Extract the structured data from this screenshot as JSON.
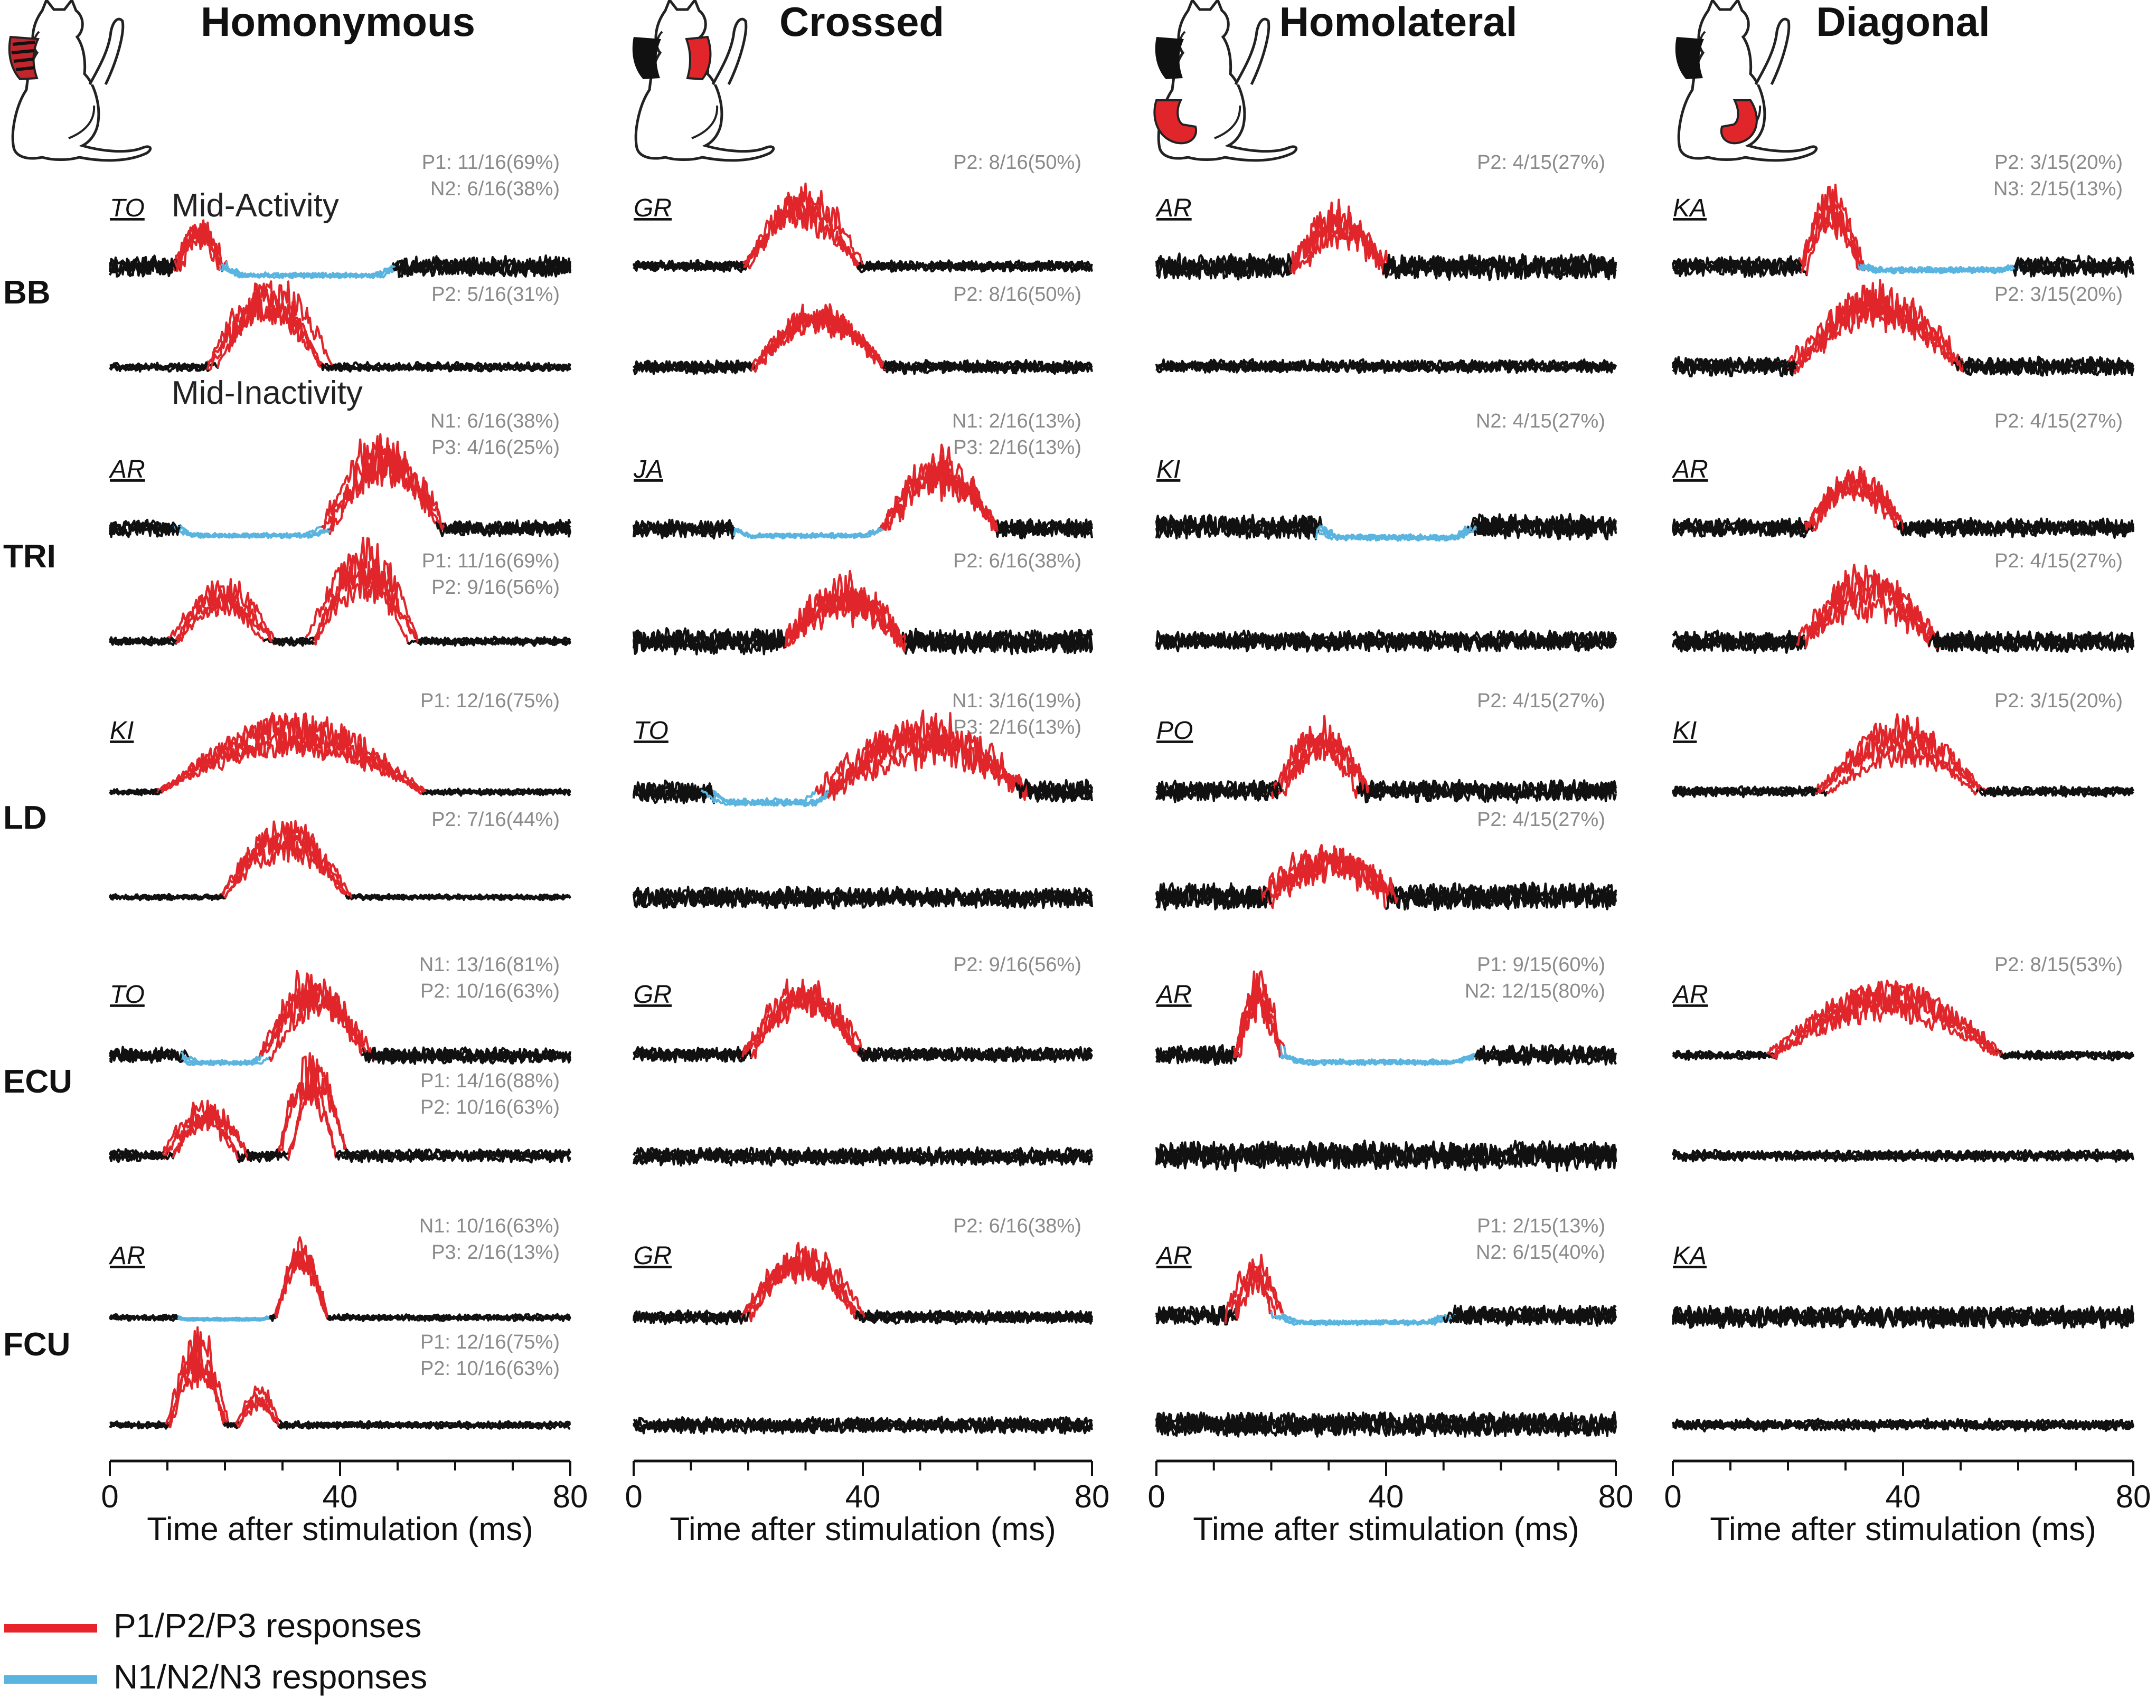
{
  "chart_data": {
    "type": "line",
    "description_note": "Grid of evoked EMG response traces; 4 stimulation conditions x 5 muscles, two phases (Mid-Activity / Mid-Inactivity) per cell.",
    "columns": [
      "Homonymous",
      "Crossed",
      "Homolateral",
      "Diagonal"
    ],
    "rows": [
      "BB",
      "TRI",
      "LD",
      "ECU",
      "FCU"
    ],
    "phase_labels": {
      "activity": "Mid-Activity",
      "inactivity": "Mid-Inactivity"
    },
    "xaxis": {
      "label": "Time after stimulation (ms)",
      "range": [
        0,
        80
      ],
      "ticks": [
        "0",
        "40",
        "80"
      ]
    },
    "legend": [
      {
        "label": "P1/P2/P3 responses",
        "color": "#e8242a"
      },
      {
        "label": "N1/N2/N3 responses",
        "color": "#5ab4e0"
      }
    ],
    "colors": {
      "trace": "#111111",
      "positive": "#e0262b",
      "negative": "#5ab4e0",
      "stat": "#8a8a8a"
    },
    "cells": [
      [
        {
          "cat": "TO",
          "top": {
            "stats": [
              "P1: 11/16(69%)",
              "N2: 6/16(38%)"
            ],
            "resp": [
              {
                "p": "pos",
                "a": 12,
                "b": 20,
                "h": 1.0
              },
              {
                "p": "neg",
                "a": 20,
                "b": 50,
                "h": 0.5
              }
            ],
            "noise": 0.6
          },
          "bot": {
            "stats": [
              "P2: 5/16(31%)"
            ],
            "resp": [
              {
                "p": "pos",
                "a": 18,
                "b": 38,
                "h": 1.6
              }
            ],
            "noise": 0.2
          }
        },
        {
          "cat": "AR",
          "top": {
            "stats": [
              "N1: 6/16(38%)",
              "P3: 4/16(25%)"
            ],
            "resp": [
              {
                "p": "neg",
                "a": 12,
                "b": 38,
                "h": 0.4
              },
              {
                "p": "pos",
                "a": 38,
                "b": 58,
                "h": 1.6
              }
            ],
            "noise": 0.45
          },
          "bot": {
            "stats": [
              "P1: 11/16(69%)",
              "P2: 9/16(56%)"
            ],
            "resp": [
              {
                "p": "pos",
                "a": 11,
                "b": 28,
                "h": 1.1
              },
              {
                "p": "pos",
                "a": 35,
                "b": 53,
                "h": 1.8
              }
            ],
            "noise": 0.2
          }
        },
        {
          "cat": "KI",
          "top": {
            "stats": [
              "P1: 12/16(75%)"
            ],
            "resp": [
              {
                "p": "pos",
                "a": 9,
                "b": 55,
                "h": 1.5
              }
            ],
            "noise": 0.15
          },
          "bot": {
            "stats": [
              "P2: 7/16(44%)"
            ],
            "resp": [
              {
                "p": "pos",
                "a": 19,
                "b": 41,
                "h": 1.6
              }
            ],
            "noise": 0.15
          }
        },
        {
          "cat": "TO",
          "top": {
            "stats": [
              "N1: 13/16(81%)",
              "P2: 10/16(63%)"
            ],
            "resp": [
              {
                "p": "neg",
                "a": 13,
                "b": 27,
                "h": 0.4
              },
              {
                "p": "pos",
                "a": 27,
                "b": 45,
                "h": 1.4
              }
            ],
            "noise": 0.45
          },
          "bot": {
            "stats": [
              "P1: 14/16(88%)",
              "P2: 10/16(63%)"
            ],
            "resp": [
              {
                "p": "pos",
                "a": 10,
                "b": 23,
                "h": 0.9
              },
              {
                "p": "pos",
                "a": 30,
                "b": 40,
                "h": 1.7
              }
            ],
            "noise": 0.3
          }
        },
        {
          "cat": "AR",
          "top": {
            "stats": [
              "N1: 10/16(63%)",
              "P3: 2/16(13%)"
            ],
            "resp": [
              {
                "p": "neg",
                "a": 12,
                "b": 28,
                "h": 0.1
              },
              {
                "p": "pos",
                "a": 29,
                "b": 38,
                "h": 1.7
              }
            ],
            "noise": 0.15
          },
          "bot": {
            "stats": [
              "P1: 12/16(75%)",
              "P2: 10/16(63%)"
            ],
            "resp": [
              {
                "p": "pos",
                "a": 10,
                "b": 20,
                "h": 1.8
              },
              {
                "p": "pos",
                "a": 22,
                "b": 29,
                "h": 0.7
              }
            ],
            "noise": 0.15
          }
        }
      ],
      [
        {
          "cat": "GR",
          "top": {
            "stats": [
              "P2: 8/16(50%)"
            ],
            "resp": [
              {
                "p": "pos",
                "a": 20,
                "b": 40,
                "h": 1.5
              }
            ],
            "noise": 0.3
          },
          "bot": {
            "stats": [
              "P2: 8/16(50%)"
            ],
            "resp": [
              {
                "p": "pos",
                "a": 20,
                "b": 43,
                "h": 1.3
              }
            ],
            "noise": 0.35
          }
        },
        {
          "cat": "JA",
          "top": {
            "stats": [
              "N1: 2/16(13%)",
              "P3: 2/16(13%)"
            ],
            "resp": [
              {
                "p": "neg",
                "a": 17,
                "b": 43,
                "h": 0.4
              },
              {
                "p": "pos",
                "a": 43,
                "b": 63,
                "h": 1.4
              }
            ],
            "noise": 0.55
          },
          "bot": {
            "stats": [
              "P2: 6/16(38%)"
            ],
            "resp": [
              {
                "p": "pos",
                "a": 26,
                "b": 47,
                "h": 1.1
              }
            ],
            "noise": 0.7
          }
        },
        {
          "cat": "TO",
          "top": {
            "stats": [
              "N1: 3/16(19%)",
              "P3: 2/16(13%)"
            ],
            "resp": [
              {
                "p": "neg",
                "a": 13,
                "b": 33,
                "h": 0.6
              },
              {
                "p": "pos",
                "a": 33,
                "b": 68,
                "h": 1.3
              }
            ],
            "noise": 0.6
          },
          "bot": {
            "stats": [],
            "resp": [],
            "noise": 0.6
          }
        },
        {
          "cat": "GR",
          "top": {
            "stats": [
              "P2: 9/16(56%)"
            ],
            "resp": [
              {
                "p": "pos",
                "a": 20,
                "b": 40,
                "h": 1.6
              }
            ],
            "noise": 0.4
          },
          "bot": {
            "stats": [],
            "resp": [],
            "noise": 0.5
          }
        },
        {
          "cat": "GR",
          "top": {
            "stats": [
              "P2: 6/16(38%)"
            ],
            "resp": [
              {
                "p": "pos",
                "a": 20,
                "b": 40,
                "h": 1.2
              }
            ],
            "noise": 0.35
          },
          "bot": {
            "stats": [],
            "resp": [],
            "noise": 0.45
          }
        }
      ],
      [
        {
          "cat": "AR",
          "top": {
            "stats": [
              "P2: 4/15(27%)"
            ],
            "resp": [
              {
                "p": "pos",
                "a": 24,
                "b": 40,
                "h": 1.1
              }
            ],
            "noise": 0.7
          },
          "bot": {
            "stats": [],
            "resp": [],
            "noise": 0.35
          }
        },
        {
          "cat": "KI",
          "top": {
            "stats": [
              "N2: 4/15(27%)"
            ],
            "resp": [
              {
                "p": "neg",
                "a": 28,
                "b": 55,
                "h": 0.6
              }
            ],
            "noise": 0.7
          },
          "bot": {
            "stats": [],
            "resp": [],
            "noise": 0.55
          }
        },
        {
          "cat": "PO",
          "top": {
            "stats": [
              "P2: 4/15(27%)"
            ],
            "resp": [
              {
                "p": "pos",
                "a": 21,
                "b": 36,
                "h": 1.2
              }
            ],
            "noise": 0.6
          },
          "bot": {
            "stats": [
              "P2: 4/15(27%)"
            ],
            "resp": [
              {
                "p": "pos",
                "a": 19,
                "b": 41,
                "h": 1.0
              }
            ],
            "noise": 0.75
          }
        },
        {
          "cat": "AR",
          "top": {
            "stats": [
              "P1: 9/15(60%)",
              "N2: 12/15(80%)"
            ],
            "resp": [
              {
                "p": "pos",
                "a": 14,
                "b": 22,
                "h": 1.4
              },
              {
                "p": "neg",
                "a": 22,
                "b": 56,
                "h": 0.4
              }
            ],
            "noise": 0.55
          },
          "bot": {
            "stats": [],
            "resp": [],
            "noise": 0.8
          }
        },
        {
          "cat": "AR",
          "top": {
            "stats": [
              "P1: 2/15(13%)",
              "N2: 6/15(40%)"
            ],
            "resp": [
              {
                "p": "pos",
                "a": 13,
                "b": 21,
                "h": 1.1
              },
              {
                "p": "neg",
                "a": 21,
                "b": 51,
                "h": 0.4
              }
            ],
            "noise": 0.55
          },
          "bot": {
            "stats": [],
            "resp": [],
            "noise": 0.7
          }
        }
      ],
      [
        {
          "cat": "KA",
          "top": {
            "stats": [
              "P2: 3/15(20%)",
              "N3: 2/15(13%)"
            ],
            "resp": [
              {
                "p": "pos",
                "a": 23,
                "b": 33,
                "h": 1.4
              },
              {
                "p": "neg",
                "a": 33,
                "b": 60,
                "h": 0.2
              }
            ],
            "noise": 0.55
          },
          "bot": {
            "stats": [
              "P2: 3/15(20%)"
            ],
            "resp": [
              {
                "p": "pos",
                "a": 21,
                "b": 50,
                "h": 1.4
              }
            ],
            "noise": 0.5
          }
        },
        {
          "cat": "AR",
          "top": {
            "stats": [
              "P2: 4/15(27%)"
            ],
            "resp": [
              {
                "p": "pos",
                "a": 24,
                "b": 40,
                "h": 1.2
              }
            ],
            "noise": 0.5
          },
          "bot": {
            "stats": [
              "P2: 4/15(27%)"
            ],
            "resp": [
              {
                "p": "pos",
                "a": 22,
                "b": 45,
                "h": 1.2
              }
            ],
            "noise": 0.6
          }
        },
        {
          "cat": "KI",
          "top": {
            "stats": [
              "P2: 3/15(20%)"
            ],
            "resp": [
              {
                "p": "pos",
                "a": 26,
                "b": 54,
                "h": 1.2
              }
            ],
            "noise": 0.25
          }
        },
        {
          "cat": "AR",
          "top": {
            "stats": [
              "P2: 8/15(53%)"
            ],
            "resp": [
              {
                "p": "pos",
                "a": 17,
                "b": 57,
                "h": 1.4
              }
            ],
            "noise": 0.2
          },
          "bot": {
            "stats": [],
            "resp": [],
            "noise": 0.3
          }
        },
        {
          "cat": "KA",
          "top": {
            "stats": [],
            "resp": [],
            "noise": 0.6
          },
          "bot": {
            "stats": [],
            "resp": [],
            "noise": 0.3
          }
        }
      ]
    ]
  }
}
